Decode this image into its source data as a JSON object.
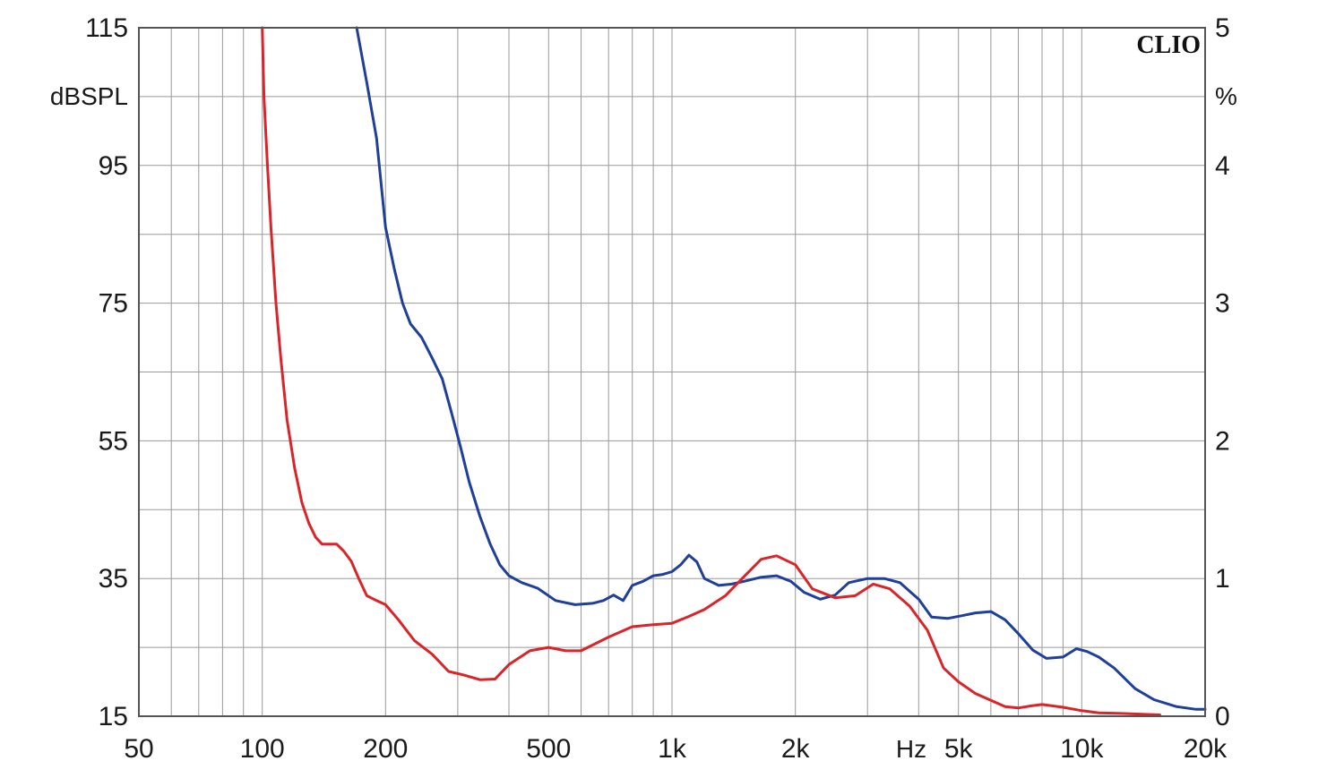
{
  "brand": {
    "label": "CLIO"
  },
  "chart_data": {
    "type": "line",
    "xscale": "log",
    "xlim": [
      50,
      20000
    ],
    "ylim_left": [
      15,
      115
    ],
    "ylim_right": [
      0,
      5
    ],
    "left_unit": "dBSPL",
    "right_unit": "%",
    "x_unit": "Hz",
    "grid": true,
    "x_ticks": [
      {
        "value": 50,
        "label": "50"
      },
      {
        "value": 100,
        "label": "100"
      },
      {
        "value": 200,
        "label": "200"
      },
      {
        "value": 500,
        "label": "500"
      },
      {
        "value": 1000,
        "label": "1k"
      },
      {
        "value": 2000,
        "label": "2k"
      },
      {
        "value": 5000,
        "label": "5k"
      },
      {
        "value": 10000,
        "label": "10k"
      },
      {
        "value": 20000,
        "label": "20k"
      }
    ],
    "y_ticks_left": [
      {
        "value": 115,
        "label": "115"
      },
      {
        "value": 95,
        "label": "95"
      },
      {
        "value": 75,
        "label": "75"
      },
      {
        "value": 55,
        "label": "55"
      },
      {
        "value": 35,
        "label": "35"
      },
      {
        "value": 15,
        "label": "15"
      }
    ],
    "y_ticks_right": [
      {
        "value": 5,
        "label": "5"
      },
      {
        "value": 4,
        "label": "4"
      },
      {
        "value": 3,
        "label": "3"
      },
      {
        "value": 2,
        "label": "2"
      },
      {
        "value": 1,
        "label": "1"
      },
      {
        "value": 0,
        "label": "0"
      }
    ],
    "series": [
      {
        "color": "#1f3f9a",
        "axis": "right",
        "points": [
          [
            170,
            5.0
          ],
          [
            180,
            4.6
          ],
          [
            190,
            4.2
          ],
          [
            200,
            3.55
          ],
          [
            210,
            3.25
          ],
          [
            220,
            3.0
          ],
          [
            230,
            2.85
          ],
          [
            245,
            2.75
          ],
          [
            260,
            2.6
          ],
          [
            275,
            2.45
          ],
          [
            290,
            2.2
          ],
          [
            305,
            1.95
          ],
          [
            320,
            1.7
          ],
          [
            340,
            1.45
          ],
          [
            360,
            1.25
          ],
          [
            380,
            1.1
          ],
          [
            400,
            1.02
          ],
          [
            430,
            0.97
          ],
          [
            470,
            0.93
          ],
          [
            520,
            0.84
          ],
          [
            580,
            0.81
          ],
          [
            640,
            0.82
          ],
          [
            680,
            0.84
          ],
          [
            720,
            0.88
          ],
          [
            760,
            0.84
          ],
          [
            800,
            0.95
          ],
          [
            850,
            0.98
          ],
          [
            900,
            1.02
          ],
          [
            950,
            1.03
          ],
          [
            1000,
            1.05
          ],
          [
            1050,
            1.1
          ],
          [
            1100,
            1.17
          ],
          [
            1150,
            1.12
          ],
          [
            1200,
            1.0
          ],
          [
            1300,
            0.95
          ],
          [
            1400,
            0.96
          ],
          [
            1500,
            0.98
          ],
          [
            1650,
            1.01
          ],
          [
            1800,
            1.02
          ],
          [
            1950,
            0.98
          ],
          [
            2100,
            0.9
          ],
          [
            2300,
            0.85
          ],
          [
            2500,
            0.88
          ],
          [
            2700,
            0.97
          ],
          [
            3000,
            1.0
          ],
          [
            3300,
            1.0
          ],
          [
            3600,
            0.97
          ],
          [
            4000,
            0.85
          ],
          [
            4300,
            0.72
          ],
          [
            4700,
            0.71
          ],
          [
            5100,
            0.73
          ],
          [
            5500,
            0.75
          ],
          [
            6000,
            0.76
          ],
          [
            6500,
            0.7
          ],
          [
            7000,
            0.6
          ],
          [
            7600,
            0.48
          ],
          [
            8200,
            0.42
          ],
          [
            9000,
            0.43
          ],
          [
            9700,
            0.49
          ],
          [
            10300,
            0.47
          ],
          [
            11000,
            0.43
          ],
          [
            12000,
            0.35
          ],
          [
            13500,
            0.2
          ],
          [
            15000,
            0.12
          ],
          [
            17000,
            0.07
          ],
          [
            19000,
            0.05
          ],
          [
            20000,
            0.05
          ]
        ]
      },
      {
        "color": "#d9252a",
        "axis": "left",
        "points": [
          [
            100,
            115
          ],
          [
            101,
            105
          ],
          [
            103,
            95
          ],
          [
            105,
            86
          ],
          [
            108,
            75
          ],
          [
            111,
            67
          ],
          [
            115,
            58
          ],
          [
            120,
            51
          ],
          [
            125,
            46
          ],
          [
            130,
            43
          ],
          [
            135,
            41
          ],
          [
            140,
            40
          ],
          [
            146,
            40
          ],
          [
            152,
            40
          ],
          [
            158,
            39
          ],
          [
            165,
            37.5
          ],
          [
            172,
            35
          ],
          [
            180,
            32.5
          ],
          [
            190,
            31.8
          ],
          [
            200,
            31.2
          ],
          [
            215,
            29
          ],
          [
            235,
            26
          ],
          [
            260,
            24
          ],
          [
            285,
            21.5
          ],
          [
            310,
            21
          ],
          [
            340,
            20.3
          ],
          [
            370,
            20.4
          ],
          [
            400,
            22.5
          ],
          [
            450,
            24.5
          ],
          [
            500,
            25
          ],
          [
            550,
            24.5
          ],
          [
            600,
            24.5
          ],
          [
            700,
            26.5
          ],
          [
            800,
            28
          ],
          [
            900,
            28.3
          ],
          [
            1000,
            28.5
          ],
          [
            1100,
            29.5
          ],
          [
            1200,
            30.5
          ],
          [
            1350,
            32.5
          ],
          [
            1500,
            35.3
          ],
          [
            1650,
            37.8
          ],
          [
            1800,
            38.3
          ],
          [
            2000,
            37
          ],
          [
            2200,
            33.5
          ],
          [
            2500,
            32.2
          ],
          [
            2800,
            32.5
          ],
          [
            3100,
            34.2
          ],
          [
            3400,
            33.5
          ],
          [
            3800,
            31
          ],
          [
            4200,
            27.5
          ],
          [
            4600,
            22
          ],
          [
            5000,
            20
          ],
          [
            5500,
            18.3
          ],
          [
            6000,
            17.3
          ],
          [
            6500,
            16.4
          ],
          [
            7000,
            16.2
          ],
          [
            7500,
            16.5
          ],
          [
            8000,
            16.7
          ],
          [
            9000,
            16.3
          ],
          [
            10000,
            15.8
          ],
          [
            11000,
            15.5
          ],
          [
            12500,
            15.4
          ],
          [
            14000,
            15.3
          ],
          [
            15500,
            15.2
          ]
        ]
      }
    ]
  }
}
